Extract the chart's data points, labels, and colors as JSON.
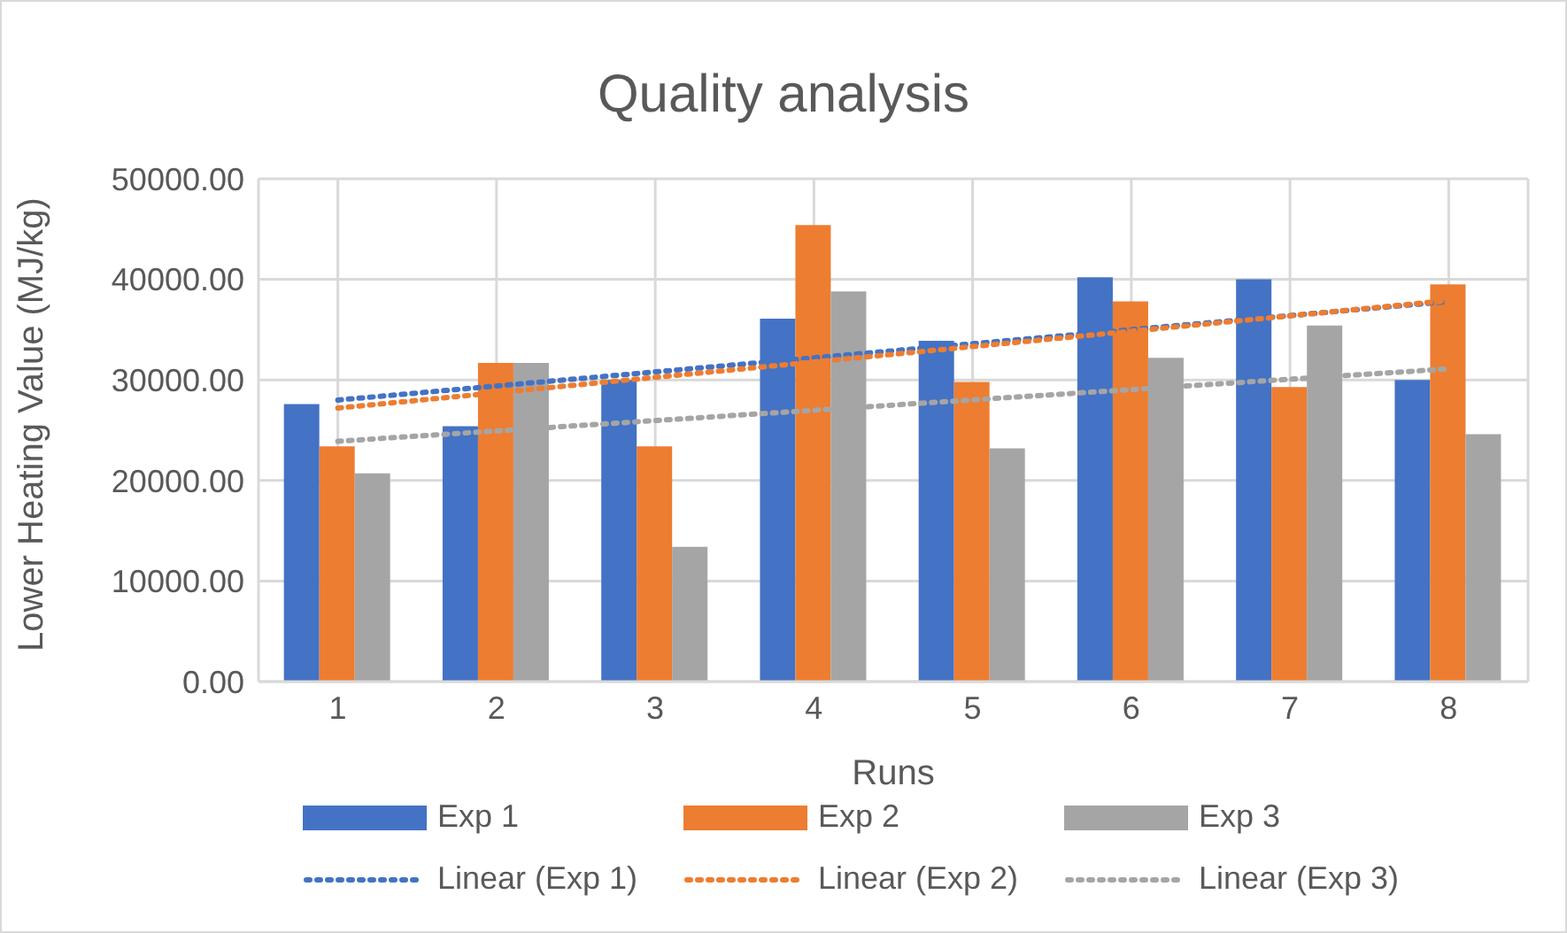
{
  "chart_data": {
    "type": "bar",
    "title": "Quality analysis",
    "xlabel": "Runs",
    "ylabel": "Lower Heating Value (MJ/kg)",
    "categories": [
      "1",
      "2",
      "3",
      "4",
      "5",
      "6",
      "7",
      "8"
    ],
    "series": [
      {
        "name": "Exp 1",
        "color": "#4472c4",
        "values": [
          27600,
          25400,
          30000,
          36100,
          33900,
          40200,
          40000,
          30000
        ]
      },
      {
        "name": "Exp 2",
        "color": "#ed7d31",
        "values": [
          23400,
          31700,
          23400,
          45400,
          29800,
          37800,
          29300,
          39500
        ]
      },
      {
        "name": "Exp 3",
        "color": "#a5a5a5",
        "values": [
          20700,
          31700,
          13400,
          38800,
          23200,
          32200,
          35400,
          24600
        ]
      },
      {
        "name": "Linear (Exp 1)",
        "type": "line",
        "color": "#4472c4",
        "line_style": "dotted",
        "x": [
          "1",
          "8"
        ],
        "values": [
          28000,
          37800
        ]
      },
      {
        "name": "Linear (Exp 2)",
        "type": "line",
        "color": "#ed7d31",
        "line_style": "dotted",
        "x": [
          "1",
          "8"
        ],
        "values": [
          27200,
          37900
        ]
      },
      {
        "name": "Linear (Exp 3)",
        "type": "line",
        "color": "#a5a5a5",
        "line_style": "dotted",
        "x": [
          "1",
          "8"
        ],
        "values": [
          23900,
          31100
        ]
      }
    ],
    "ylim": [
      0,
      50000
    ],
    "yticks": [
      {
        "value": 0,
        "label": "0.00"
      },
      {
        "value": 10000,
        "label": "10000.00"
      },
      {
        "value": 20000,
        "label": "20000.00"
      },
      {
        "value": 30000,
        "label": "30000.00"
      },
      {
        "value": 40000,
        "label": "40000.00"
      },
      {
        "value": 50000,
        "label": "50000.00"
      }
    ],
    "grid": true,
    "legend": "bottom",
    "marker": "none"
  }
}
